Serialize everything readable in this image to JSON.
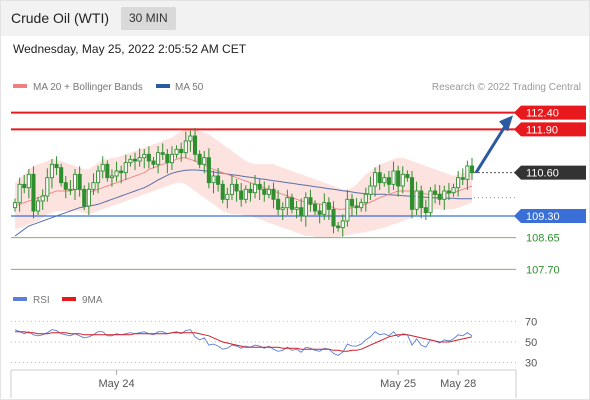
{
  "header": {
    "title": "Crude Oil (WTI)",
    "timeframe": "30 MIN"
  },
  "date_text": "Wednesday, May 25, 2022 2:05:52 AM CET",
  "legend": {
    "ma20_bb": "MA 20 + Bollinger Bands",
    "ma50": "MA 50"
  },
  "copyright": "Research © 2022 Trading Central",
  "rsi_legend": {
    "rsi": "RSI",
    "ma9": "9MA"
  },
  "colors": {
    "resistance": "#e8191c",
    "support": "#3a6fd8",
    "minor_support": "#7ab56e",
    "candle": "#2f8f2f",
    "ma20": "#f08080",
    "ma50": "#5b6fa8",
    "bb_fill": "#fbd9d5",
    "arrow": "#2c5aa0",
    "last_price": "#333333"
  },
  "chart_data": [
    {
      "type": "candlestick",
      "ylim": [
        107.2,
        112.9
      ],
      "x_ticks": [
        {
          "label": "May 24",
          "index": 22
        },
        {
          "label": "May 25",
          "index": 83
        },
        {
          "label": "May 28",
          "index": 96
        }
      ],
      "levels": [
        {
          "label": "112.40",
          "value": 112.4,
          "kind": "resistance"
        },
        {
          "label": "111.90",
          "value": 111.9,
          "kind": "resistance"
        },
        {
          "label": "110.60",
          "value": 110.6,
          "kind": "last"
        },
        {
          "label": "109.30",
          "value": 109.3,
          "kind": "support"
        },
        {
          "label": "108.65",
          "value": 108.65,
          "kind": "minor_support"
        },
        {
          "label": "107.70",
          "value": 107.7,
          "kind": "minor_support"
        }
      ],
      "arrow_target": 112.2,
      "close": [
        109.7,
        110.25,
        110.15,
        110.55,
        109.45,
        109.75,
        109.9,
        110.45,
        110.85,
        110.75,
        110.3,
        110.1,
        110.1,
        110.55,
        110.1,
        109.6,
        110.1,
        110.3,
        110.65,
        110.85,
        110.45,
        110.5,
        110.65,
        110.6,
        110.9,
        111.0,
        110.95,
        111.05,
        111.15,
        110.95,
        110.85,
        111.2,
        111.15,
        110.9,
        111.15,
        111.3,
        111.2,
        111.55,
        111.7,
        111.15,
        110.85,
        111.05,
        110.3,
        110.5,
        110.25,
        109.8,
        109.95,
        110.25,
        110.05,
        109.8,
        110.1,
        110.0,
        110.25,
        110.1,
        109.95,
        110.1,
        109.8,
        109.5,
        109.55,
        109.85,
        109.5,
        109.55,
        109.3,
        109.85,
        109.65,
        109.45,
        109.35,
        109.7,
        109.5,
        109.0,
        108.95,
        109.15,
        109.8,
        109.6,
        109.55,
        109.7,
        109.95,
        110.2,
        110.6,
        110.3,
        110.45,
        110.25,
        110.65,
        110.2,
        110.55,
        110.45,
        109.5,
        110.05,
        109.55,
        109.4,
        110.05,
        109.95,
        109.8,
        110.05,
        110.0,
        110.15,
        110.45,
        110.4,
        110.8,
        110.6
      ],
      "ma20": [
        109.6,
        109.65,
        109.7,
        109.75,
        109.8,
        109.85,
        109.9,
        109.95,
        110.0,
        110.05,
        110.05,
        110.05,
        110.05,
        110.1,
        110.1,
        110.05,
        110.0,
        110.05,
        110.1,
        110.15,
        110.2,
        110.25,
        110.3,
        110.35,
        110.4,
        110.45,
        110.5,
        110.55,
        110.6,
        110.7,
        110.75,
        110.8,
        110.85,
        110.9,
        110.95,
        111.0,
        111.05,
        111.05,
        111.0,
        110.95,
        110.9,
        110.85,
        110.75,
        110.7,
        110.65,
        110.6,
        110.55,
        110.5,
        110.45,
        110.4,
        110.35,
        110.3,
        110.25,
        110.2,
        110.15,
        110.1,
        110.05,
        110.0,
        109.95,
        109.9,
        109.85,
        109.8,
        109.75,
        109.72,
        109.7,
        109.68,
        109.66,
        109.62,
        109.6,
        109.55,
        109.5,
        109.5,
        109.52,
        109.55,
        109.58,
        109.62,
        109.66,
        109.72,
        109.78,
        109.85,
        109.9,
        109.95,
        110.0,
        110.05,
        110.05,
        110.05,
        110.05,
        110.0,
        109.98,
        109.96,
        109.95,
        109.95,
        109.95,
        109.96,
        109.98,
        110.0,
        110.05,
        110.1,
        110.15,
        110.2
      ],
      "bb_upper": [
        110.3,
        110.4,
        110.55,
        110.7,
        110.8,
        110.85,
        110.9,
        110.95,
        111.0,
        111.0,
        110.95,
        110.9,
        110.85,
        110.8,
        110.75,
        110.7,
        110.7,
        110.8,
        110.9,
        111.0,
        111.0,
        111.05,
        111.05,
        111.1,
        111.15,
        111.2,
        111.25,
        111.3,
        111.35,
        111.4,
        111.45,
        111.5,
        111.55,
        111.6,
        111.65,
        111.75,
        111.85,
        111.9,
        111.9,
        111.9,
        111.85,
        111.8,
        111.75,
        111.65,
        111.55,
        111.45,
        111.35,
        111.25,
        111.15,
        111.05,
        110.95,
        110.9,
        110.85,
        110.85,
        110.85,
        110.85,
        110.85,
        110.8,
        110.75,
        110.7,
        110.65,
        110.6,
        110.55,
        110.5,
        110.45,
        110.4,
        110.35,
        110.3,
        110.25,
        110.2,
        110.15,
        110.1,
        110.1,
        110.15,
        110.25,
        110.4,
        110.55,
        110.65,
        110.75,
        110.85,
        110.9,
        110.95,
        111.0,
        111.05,
        111.05,
        111.0,
        110.95,
        110.9,
        110.85,
        110.8,
        110.75,
        110.7,
        110.65,
        110.6,
        110.55,
        110.5,
        110.55,
        110.6,
        110.65,
        110.7
      ],
      "bb_lower": [
        108.9,
        108.95,
        109.0,
        109.05,
        109.1,
        109.15,
        109.25,
        109.35,
        109.4,
        109.45,
        109.45,
        109.45,
        109.45,
        109.45,
        109.45,
        109.4,
        109.35,
        109.4,
        109.45,
        109.5,
        109.55,
        109.6,
        109.65,
        109.7,
        109.75,
        109.8,
        109.85,
        109.9,
        109.95,
        110.0,
        110.05,
        110.1,
        110.15,
        110.2,
        110.25,
        110.3,
        110.3,
        110.25,
        110.15,
        110.05,
        109.95,
        109.85,
        109.75,
        109.65,
        109.55,
        109.45,
        109.4,
        109.35,
        109.35,
        109.35,
        109.3,
        109.3,
        109.25,
        109.2,
        109.15,
        109.1,
        109.05,
        109.0,
        108.95,
        108.9,
        108.85,
        108.8,
        108.75,
        108.7,
        108.7,
        108.68,
        108.66,
        108.65,
        108.65,
        108.66,
        108.68,
        108.7,
        108.72,
        108.75,
        108.78,
        108.8,
        108.82,
        108.85,
        108.88,
        108.92,
        108.95,
        109.0,
        109.05,
        109.1,
        109.15,
        109.2,
        109.25,
        109.3,
        109.35,
        109.4,
        109.45,
        109.5,
        109.5,
        109.5,
        109.5,
        109.5,
        109.55,
        109.6,
        109.65,
        109.7
      ],
      "ma50": [
        108.7,
        108.8,
        108.9,
        109.0,
        109.05,
        109.1,
        109.15,
        109.2,
        109.25,
        109.3,
        109.35,
        109.4,
        109.45,
        109.5,
        109.55,
        109.58,
        109.6,
        109.62,
        109.65,
        109.7,
        109.75,
        109.8,
        109.85,
        109.9,
        109.95,
        110.0,
        110.05,
        110.1,
        110.15,
        110.22,
        110.3,
        110.38,
        110.45,
        110.52,
        110.58,
        110.62,
        110.65,
        110.67,
        110.68,
        110.68,
        110.67,
        110.66,
        110.64,
        110.62,
        110.6,
        110.58,
        110.56,
        110.54,
        110.52,
        110.5,
        110.48,
        110.46,
        110.44,
        110.42,
        110.4,
        110.38,
        110.36,
        110.34,
        110.32,
        110.3,
        110.28,
        110.26,
        110.24,
        110.22,
        110.2,
        110.18,
        110.16,
        110.14,
        110.12,
        110.1,
        110.08,
        110.06,
        110.04,
        110.02,
        110.0,
        109.98,
        109.97,
        109.96,
        109.95,
        109.95,
        109.95,
        109.94,
        109.93,
        109.92,
        109.91,
        109.9,
        109.89,
        109.88,
        109.87,
        109.86,
        109.85,
        109.85,
        109.84,
        109.84,
        109.83,
        109.83,
        109.82,
        109.82,
        109.82,
        109.82
      ]
    },
    {
      "type": "line",
      "title": "RSI",
      "ylim": [
        20,
        80
      ],
      "y_ticks": [
        70,
        50,
        30
      ],
      "series": [
        {
          "name": "RSI",
          "values": [
            62,
            60,
            58,
            60,
            57,
            56,
            57,
            59,
            62,
            61,
            58,
            57,
            56,
            58,
            56,
            54,
            55,
            57,
            60,
            60,
            56,
            56,
            58,
            57,
            58,
            59,
            58,
            59,
            60,
            58,
            57,
            60,
            60,
            58,
            59,
            60,
            58,
            61,
            62,
            55,
            52,
            54,
            47,
            48,
            46,
            43,
            44,
            47,
            46,
            44,
            46,
            45,
            47,
            46,
            44,
            46,
            43,
            41,
            42,
            45,
            42,
            43,
            40,
            45,
            44,
            42,
            41,
            44,
            43,
            39,
            37,
            40,
            48,
            46,
            46,
            48,
            52,
            55,
            60,
            57,
            58,
            56,
            60,
            55,
            58,
            57,
            47,
            53,
            47,
            45,
            52,
            51,
            49,
            52,
            51,
            53,
            57,
            56,
            59,
            56
          ]
        },
        {
          "name": "9MA",
          "values": [
            60,
            60,
            60,
            59,
            59,
            58,
            58,
            58,
            59,
            59,
            59,
            59,
            58,
            58,
            58,
            57,
            57,
            57,
            57,
            57,
            57,
            57,
            57,
            57,
            57,
            57,
            58,
            58,
            58,
            58,
            58,
            58,
            58,
            58,
            59,
            59,
            59,
            59,
            59,
            59,
            58,
            57,
            56,
            54,
            52,
            50,
            49,
            48,
            47,
            46,
            45,
            45,
            45,
            45,
            45,
            45,
            45,
            45,
            44,
            44,
            44,
            44,
            43,
            43,
            43,
            43,
            43,
            43,
            43,
            42,
            42,
            41,
            41,
            42,
            42,
            43,
            45,
            47,
            49,
            51,
            53,
            55,
            56,
            57,
            57,
            57,
            56,
            55,
            54,
            53,
            52,
            51,
            50,
            50,
            50,
            51,
            52,
            53,
            54,
            55
          ]
        }
      ]
    }
  ]
}
